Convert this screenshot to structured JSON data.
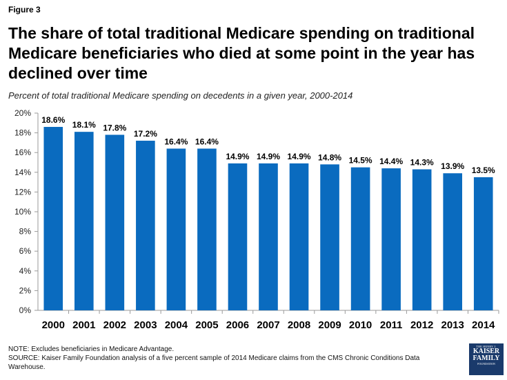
{
  "figure_label": "Figure 3",
  "title": "The share of total traditional Medicare spending on traditional Medicare beneficiaries who died at some point in the year has declined over time",
  "subtitle": "Percent of total traditional Medicare spending on decedents in a given year, 2000-2014",
  "chart_data": {
    "type": "bar",
    "categories": [
      "2000",
      "2001",
      "2002",
      "2003",
      "2004",
      "2005",
      "2006",
      "2007",
      "2008",
      "2009",
      "2010",
      "2011",
      "2012",
      "2013",
      "2014"
    ],
    "values": [
      18.6,
      18.1,
      17.8,
      17.2,
      16.4,
      16.4,
      14.9,
      14.9,
      14.9,
      14.8,
      14.5,
      14.4,
      14.3,
      13.9,
      13.5
    ],
    "data_labels": [
      "18.6%",
      "18.1%",
      "17.8%",
      "17.2%",
      "16.4%",
      "16.4%",
      "14.9%",
      "14.9%",
      "14.9%",
      "14.8%",
      "14.5%",
      "14.4%",
      "14.3%",
      "13.9%",
      "13.5%"
    ],
    "y_ticks": [
      0,
      2,
      4,
      6,
      8,
      10,
      12,
      14,
      16,
      18,
      20
    ],
    "y_tick_labels": [
      "0%",
      "2%",
      "4%",
      "6%",
      "8%",
      "10%",
      "12%",
      "14%",
      "16%",
      "18%",
      "20%"
    ],
    "ylim": [
      0,
      20
    ],
    "xlabel": "",
    "ylabel": "",
    "grid": false,
    "bar_color": "#0a6bbf"
  },
  "footer": {
    "note": "NOTE: Excludes beneficiaries in Medicare Advantage.",
    "source": "SOURCE: Kaiser Family Foundation analysis of a five percent sample of 2014 Medicare claims from the CMS Chronic Conditions Data Warehouse."
  },
  "logo": {
    "line1": "THE HENRY J.",
    "line2": "KAISER",
    "line3": "FAMILY",
    "line4": "FOUNDATION"
  }
}
